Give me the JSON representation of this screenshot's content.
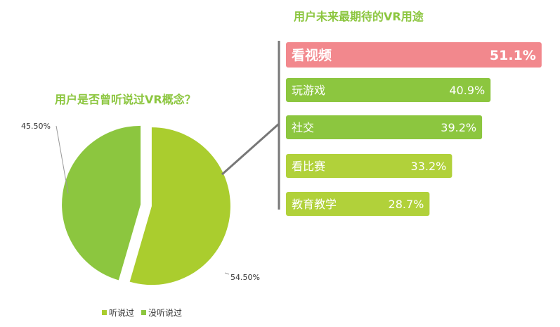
{
  "colors": {
    "heard": "#aacd2e",
    "not_heard": "#8cc63f",
    "bar_highlight": "#f2888d",
    "bar_dark": "#8cc63f",
    "bar_light": "#b1d13a",
    "title": "#8cc63f",
    "connector": "#777777"
  },
  "pie_title": "用户是否曾听说过VR概念？",
  "bar_title": "用户未来最期待的VR用途",
  "chart_data": [
    {
      "type": "pie",
      "title": "用户是否曾听说过VR概念？",
      "categories": [
        "听说过",
        "没听说过"
      ],
      "values": [
        54.5,
        45.5
      ],
      "labels": [
        "54.50%",
        "45.50%"
      ],
      "legend": "bottom"
    },
    {
      "type": "bar",
      "orientation": "horizontal",
      "title": "用户未来最期待的VR用途",
      "categories": [
        "看视频",
        "玩游戏",
        "社交",
        "看比赛",
        "教育教学"
      ],
      "values": [
        51.1,
        40.9,
        39.2,
        33.2,
        28.7
      ],
      "labels": [
        "51.1%",
        "40.9%",
        "39.2%",
        "33.2%",
        "28.7%"
      ]
    }
  ]
}
